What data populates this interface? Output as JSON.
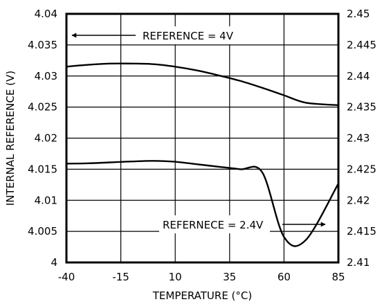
{
  "chart_data": {
    "type": "line",
    "xlabel": "TEMPERATURE (°C)",
    "ylabel": "INTERNAL REFERENCE (V)",
    "x_ticks": [
      "-40",
      "-15",
      "10",
      "35",
      "60",
      "85"
    ],
    "y_left_ticks": [
      "4",
      "4.005",
      "4.01",
      "4.015",
      "4.02",
      "4.025",
      "4.03",
      "4.035",
      "4.04"
    ],
    "y_right_ticks": [
      "2.41",
      "2.415",
      "2.42",
      "2.425",
      "2.43",
      "2.435",
      "2.44",
      "2.445",
      "2.45"
    ],
    "xlim": [
      -40,
      85
    ],
    "ylim_left": [
      4.0,
      4.04
    ],
    "ylim_right": [
      2.41,
      2.45
    ],
    "grid": true,
    "series": [
      {
        "name": "REFERENCE = 4V",
        "axis": "left",
        "x": [
          -40,
          -30,
          -20,
          -10,
          0,
          10,
          20,
          30,
          40,
          50,
          60,
          70,
          85
        ],
        "y": [
          4.0315,
          4.0318,
          4.032,
          4.032,
          4.0319,
          4.0315,
          4.0309,
          4.0301,
          4.0292,
          4.0281,
          4.0269,
          4.0257,
          4.0253
        ]
      },
      {
        "name": "REFERNECE = 2.4V",
        "axis": "right",
        "x": [
          -40,
          -30,
          -20,
          -10,
          0,
          10,
          20,
          30,
          40,
          50,
          60,
          70,
          85
        ],
        "y": [
          2.4259,
          2.42595,
          2.4261,
          2.42625,
          2.42635,
          2.4262,
          2.4258,
          2.4254,
          2.425,
          2.4245,
          2.4141,
          2.4136,
          2.4227
        ]
      }
    ],
    "annotations": [
      {
        "text": "REFERENCE = 4V",
        "arrow": "left"
      },
      {
        "text": "REFERNECE = 2.4V",
        "arrow": "right"
      }
    ]
  }
}
